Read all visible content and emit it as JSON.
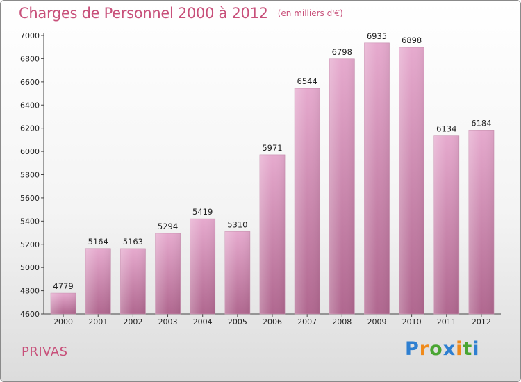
{
  "header": {
    "title": "Charges de Personnel 2000 à 2012",
    "subtitle": "(en milliers d'€)"
  },
  "footer": {
    "commune": "PRIVAS",
    "logo_letters": [
      "P",
      "r",
      "o",
      "x",
      "i",
      "t",
      "i"
    ],
    "logo_colors": [
      "#2e7fd1",
      "#f08a1a",
      "#49a532",
      "#2e7fd1",
      "#f08a1a",
      "#49a532",
      "#2e7fd1"
    ]
  },
  "colors": {
    "bar_top": "#e6aace",
    "bar_bottom": "#b0678f",
    "accent": "#c8507a"
  },
  "chart_data": {
    "type": "bar",
    "title": "Charges de Personnel 2000 à 2012",
    "subtitle": "(en milliers d'€)",
    "categories": [
      "2000",
      "2001",
      "2002",
      "2003",
      "2004",
      "2005",
      "2006",
      "2007",
      "2008",
      "2009",
      "2010",
      "2011",
      "2012"
    ],
    "values": [
      4779,
      5164,
      5163,
      5294,
      5419,
      5310,
      5971,
      6544,
      6798,
      6935,
      6898,
      6134,
      6184
    ],
    "ylim": [
      4600,
      7000
    ],
    "yticks": [
      4600,
      4800,
      5000,
      5200,
      5400,
      5600,
      5800,
      6000,
      6200,
      6400,
      6600,
      6800,
      7000
    ],
    "grid": false,
    "data_labels": true
  }
}
